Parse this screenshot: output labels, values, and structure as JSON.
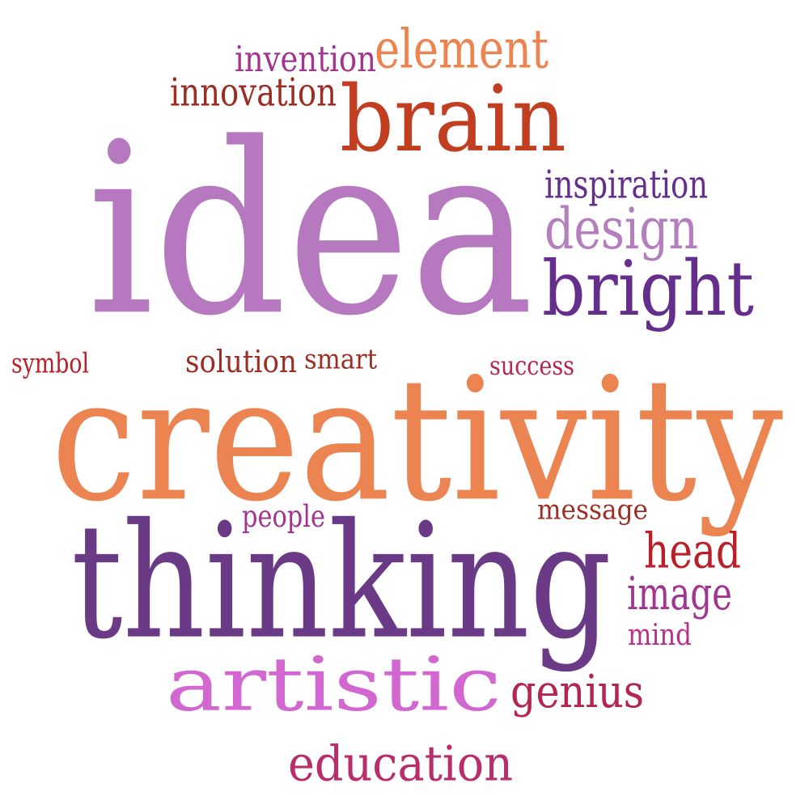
{
  "palette": {
    "lavender": "#b678be",
    "orange": "#ec8452",
    "purple": "#6b3a86",
    "rust": "#c23e21",
    "maroon": "#9b2f25",
    "magenta": "#a23590",
    "violet": "#652e8c",
    "orchid": "#d367d1",
    "berry": "#b82d6a",
    "red": "#b9202a",
    "pink": "#bb2f8a",
    "crimson": "#b2264f",
    "light_purple": "#b47fbd"
  },
  "words": [
    {
      "text": "idea",
      "color": "lavender"
    },
    {
      "text": "creativity",
      "color": "orange"
    },
    {
      "text": "thinking",
      "color": "purple"
    },
    {
      "text": "brain",
      "color": "rust"
    },
    {
      "text": "artistic",
      "color": "orchid"
    },
    {
      "text": "bright",
      "color": "violet"
    },
    {
      "text": "design",
      "color": "light_purple"
    },
    {
      "text": "element",
      "color": "orange"
    },
    {
      "text": "innovation",
      "color": "maroon"
    },
    {
      "text": "invention",
      "color": "magenta"
    },
    {
      "text": "inspiration",
      "color": "violet"
    },
    {
      "text": "education",
      "color": "berry"
    },
    {
      "text": "genius",
      "color": "crimson"
    },
    {
      "text": "head",
      "color": "red"
    },
    {
      "text": "image",
      "color": "magenta"
    },
    {
      "text": "mind",
      "color": "pink"
    },
    {
      "text": "message",
      "color": "maroon"
    },
    {
      "text": "people",
      "color": "magenta"
    },
    {
      "text": "symbol",
      "color": "red"
    },
    {
      "text": "solution",
      "color": "maroon"
    },
    {
      "text": "smart",
      "color": "maroon"
    },
    {
      "text": "success",
      "color": "crimson"
    }
  ]
}
